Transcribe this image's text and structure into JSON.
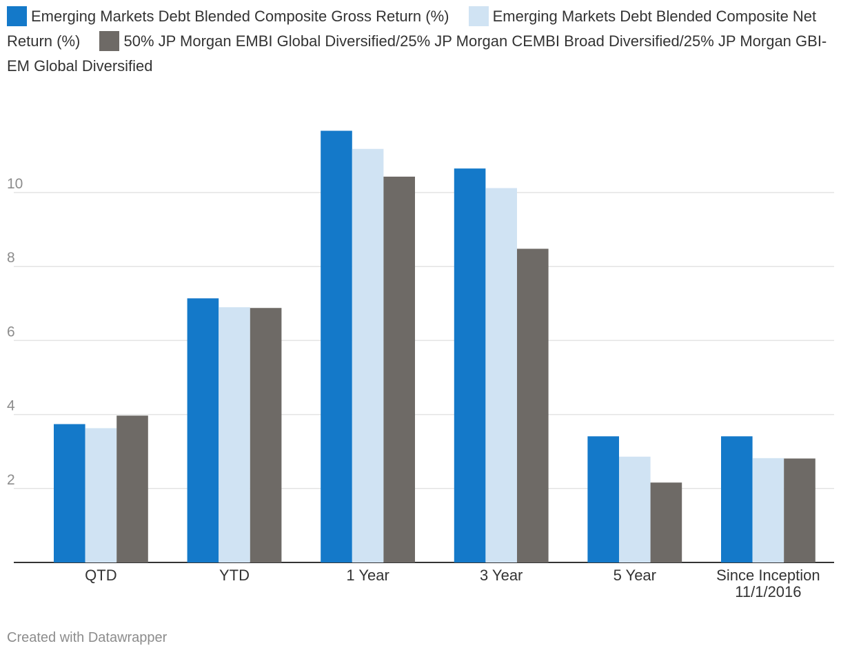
{
  "legend": [
    {
      "label": "Emerging Markets Debt Blended Composite Gross Return (%)",
      "color": "#1479c9"
    },
    {
      "label": "Emerging Markets Debt Blended Composite Net Return (%)",
      "color": "#d0e3f3"
    },
    {
      "label": "50% JP Morgan EMBI Global Diversified/25% JP Morgan CEMBI Broad Diversified/25% JP Morgan GBI-EM Global Diversified",
      "color": "#6e6a66"
    }
  ],
  "footer": "Created with Datawrapper",
  "chart_data": {
    "type": "bar",
    "categories": [
      "QTD",
      "YTD",
      "1 Year",
      "3 Year",
      "5 Year",
      "Since Inception 11/1/2016"
    ],
    "category_lines": [
      [
        "QTD"
      ],
      [
        "YTD"
      ],
      [
        "1 Year"
      ],
      [
        "3 Year"
      ],
      [
        "5 Year"
      ],
      [
        "Since Inception",
        "11/1/2016"
      ]
    ],
    "series": [
      {
        "name": "Emerging Markets Debt Blended Composite Gross Return (%)",
        "color": "#1479c9",
        "values": [
          3.74,
          7.14,
          11.67,
          10.65,
          3.41,
          3.41
        ]
      },
      {
        "name": "Emerging Markets Debt Blended Composite Net Return (%)",
        "color": "#d0e3f3",
        "values": [
          3.63,
          6.9,
          11.18,
          10.12,
          2.86,
          2.82
        ]
      },
      {
        "name": "50% JP Morgan EMBI Global Diversified/25% JP Morgan CEMBI Broad Diversified/25% JP Morgan GBI-EM Global Diversified",
        "color": "#6e6a66",
        "values": [
          3.97,
          6.88,
          10.43,
          8.48,
          2.16,
          2.81
        ]
      }
    ],
    "yticks": [
      2,
      4,
      6,
      8,
      10
    ],
    "ylim": [
      0,
      12.5
    ],
    "grid": true,
    "legend_position": "top",
    "xlabel": "",
    "ylabel": ""
  }
}
